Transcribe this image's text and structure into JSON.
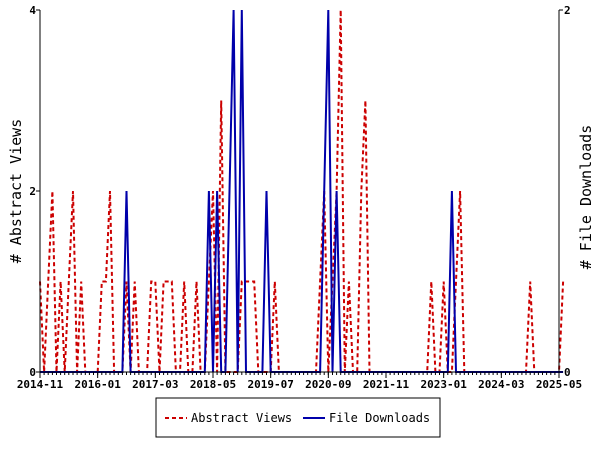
{
  "chart_data": {
    "type": "line",
    "xlabel": "",
    "ylabel_left": "# Abstract Views",
    "ylabel_right": "# File Downloads",
    "x_ticks": [
      "2014-11",
      "2016-01",
      "2017-03",
      "2018-05",
      "2019-07",
      "2020-09",
      "2021-11",
      "2023-01",
      "2024-03",
      "2025-05"
    ],
    "y_ticks_left": [
      "0",
      "2",
      "4"
    ],
    "y_ticks_right": [
      "0",
      "2"
    ],
    "ylim_left": [
      0,
      4
    ],
    "ylim_right": [
      0,
      2
    ],
    "grid": false,
    "legend_position": "bottom",
    "series": [
      {
        "name": "Abstract Views",
        "axis": "left",
        "color": "#cc0000",
        "style": "dashed",
        "points": [
          [
            "2014-11",
            1
          ],
          [
            "2014-12",
            0
          ],
          [
            "2015-01",
            1
          ],
          [
            "2015-02",
            2
          ],
          [
            "2015-03",
            0
          ],
          [
            "2015-04",
            1
          ],
          [
            "2015-05",
            0
          ],
          [
            "2015-06",
            1
          ],
          [
            "2015-07",
            2
          ],
          [
            "2015-08",
            0
          ],
          [
            "2015-09",
            1
          ],
          [
            "2015-10",
            0
          ],
          [
            "2015-11",
            0
          ],
          [
            "2015-12",
            0
          ],
          [
            "2016-01",
            0
          ],
          [
            "2016-02",
            1
          ],
          [
            "2016-03",
            1
          ],
          [
            "2016-04",
            2
          ],
          [
            "2016-05",
            0
          ],
          [
            "2016-06",
            0
          ],
          [
            "2016-07",
            0
          ],
          [
            "2016-08",
            1
          ],
          [
            "2016-09",
            0
          ],
          [
            "2016-10",
            1
          ],
          [
            "2016-11",
            0
          ],
          [
            "2016-12",
            0
          ],
          [
            "2017-01",
            0
          ],
          [
            "2017-02",
            1
          ],
          [
            "2017-03",
            1
          ],
          [
            "2017-04",
            0
          ],
          [
            "2017-05",
            1
          ],
          [
            "2017-06",
            1
          ],
          [
            "2017-07",
            1
          ],
          [
            "2017-08",
            0
          ],
          [
            "2017-09",
            0
          ],
          [
            "2017-10",
            1
          ],
          [
            "2017-11",
            0
          ],
          [
            "2017-12",
            0
          ],
          [
            "2018-01",
            1
          ],
          [
            "2018-02",
            0
          ],
          [
            "2018-03",
            0
          ],
          [
            "2018-04",
            1
          ],
          [
            "2018-05",
            2
          ],
          [
            "2018-06",
            0
          ],
          [
            "2018-07",
            3
          ],
          [
            "2018-08",
            0
          ],
          [
            "2018-09",
            0
          ],
          [
            "2018-10",
            0
          ],
          [
            "2018-11",
            0
          ],
          [
            "2018-12",
            1
          ],
          [
            "2019-01",
            1
          ],
          [
            "2019-02",
            1
          ],
          [
            "2019-03",
            1
          ],
          [
            "2019-04",
            0
          ],
          [
            "2019-05",
            0
          ],
          [
            "2019-06",
            0
          ],
          [
            "2019-07",
            0
          ],
          [
            "2019-08",
            1
          ],
          [
            "2019-09",
            0
          ],
          [
            "2019-10",
            0
          ],
          [
            "2019-11",
            0
          ],
          [
            "2019-12",
            0
          ],
          [
            "2020-01",
            0
          ],
          [
            "2020-02",
            0
          ],
          [
            "2020-03",
            0
          ],
          [
            "2020-04",
            0
          ],
          [
            "2020-05",
            0
          ],
          [
            "2020-06",
            0
          ],
          [
            "2020-07",
            1
          ],
          [
            "2020-08",
            2
          ],
          [
            "2020-09",
            0
          ],
          [
            "2020-10",
            1
          ],
          [
            "2020-11",
            2
          ],
          [
            "2020-12",
            4
          ],
          [
            "2021-01",
            0
          ],
          [
            "2021-02",
            1
          ],
          [
            "2021-03",
            0
          ],
          [
            "2021-04",
            0
          ],
          [
            "2021-05",
            2
          ],
          [
            "2021-06",
            3
          ],
          [
            "2021-07",
            0
          ],
          [
            "2021-08",
            0
          ],
          [
            "2021-09",
            0
          ],
          [
            "2021-10",
            0
          ],
          [
            "2021-11",
            0
          ],
          [
            "2021-12",
            0
          ],
          [
            "2022-01",
            0
          ],
          [
            "2022-02",
            0
          ],
          [
            "2022-03",
            0
          ],
          [
            "2022-04",
            0
          ],
          [
            "2022-05",
            0
          ],
          [
            "2022-06",
            0
          ],
          [
            "2022-07",
            0
          ],
          [
            "2022-08",
            0
          ],
          [
            "2022-09",
            0
          ],
          [
            "2022-10",
            1
          ],
          [
            "2022-11",
            0
          ],
          [
            "2022-12",
            0
          ],
          [
            "2023-01",
            1
          ],
          [
            "2023-02",
            0
          ],
          [
            "2023-03",
            0
          ],
          [
            "2023-04",
            1
          ],
          [
            "2023-05",
            2
          ],
          [
            "2023-06",
            0
          ],
          [
            "2023-07",
            0
          ],
          [
            "2023-08",
            0
          ],
          [
            "2023-09",
            0
          ],
          [
            "2023-10",
            0
          ],
          [
            "2023-11",
            0
          ],
          [
            "2023-12",
            0
          ],
          [
            "2024-01",
            0
          ],
          [
            "2024-02",
            0
          ],
          [
            "2024-03",
            0
          ],
          [
            "2024-04",
            0
          ],
          [
            "2024-05",
            0
          ],
          [
            "2024-06",
            0
          ],
          [
            "2024-07",
            0
          ],
          [
            "2024-08",
            0
          ],
          [
            "2024-09",
            0
          ],
          [
            "2024-10",
            1
          ],
          [
            "2024-11",
            0
          ],
          [
            "2024-12",
            0
          ],
          [
            "2025-01",
            0
          ],
          [
            "2025-02",
            0
          ],
          [
            "2025-03",
            0
          ],
          [
            "2025-04",
            0
          ],
          [
            "2025-05",
            0
          ],
          [
            "2025-06",
            1
          ]
        ]
      },
      {
        "name": "File Downloads",
        "axis": "right",
        "color": "#0000aa",
        "style": "solid",
        "points": [
          [
            "2014-11",
            0
          ],
          [
            "2016-06",
            0
          ],
          [
            "2016-07",
            0
          ],
          [
            "2016-08",
            1
          ],
          [
            "2016-09",
            0
          ],
          [
            "2016-10",
            0
          ],
          [
            "2018-03",
            0
          ],
          [
            "2018-04",
            1
          ],
          [
            "2018-05",
            0
          ],
          [
            "2018-06",
            1
          ],
          [
            "2018-07",
            0
          ],
          [
            "2018-08",
            0
          ],
          [
            "2018-09",
            1
          ],
          [
            "2018-10",
            2
          ],
          [
            "2018-11",
            0
          ],
          [
            "2018-12",
            2
          ],
          [
            "2019-01",
            0
          ],
          [
            "2019-05",
            0
          ],
          [
            "2019-06",
            1
          ],
          [
            "2019-07",
            0
          ],
          [
            "2019-08",
            0
          ],
          [
            "2020-06",
            0
          ],
          [
            "2020-07",
            0
          ],
          [
            "2020-08",
            1
          ],
          [
            "2020-09",
            2
          ],
          [
            "2020-10",
            0
          ],
          [
            "2020-11",
            1
          ],
          [
            "2020-12",
            0
          ],
          [
            "2021-01",
            0
          ],
          [
            "2023-02",
            0
          ],
          [
            "2023-03",
            1
          ],
          [
            "2023-04",
            0
          ],
          [
            "2025-06",
            0
          ]
        ]
      }
    ]
  }
}
